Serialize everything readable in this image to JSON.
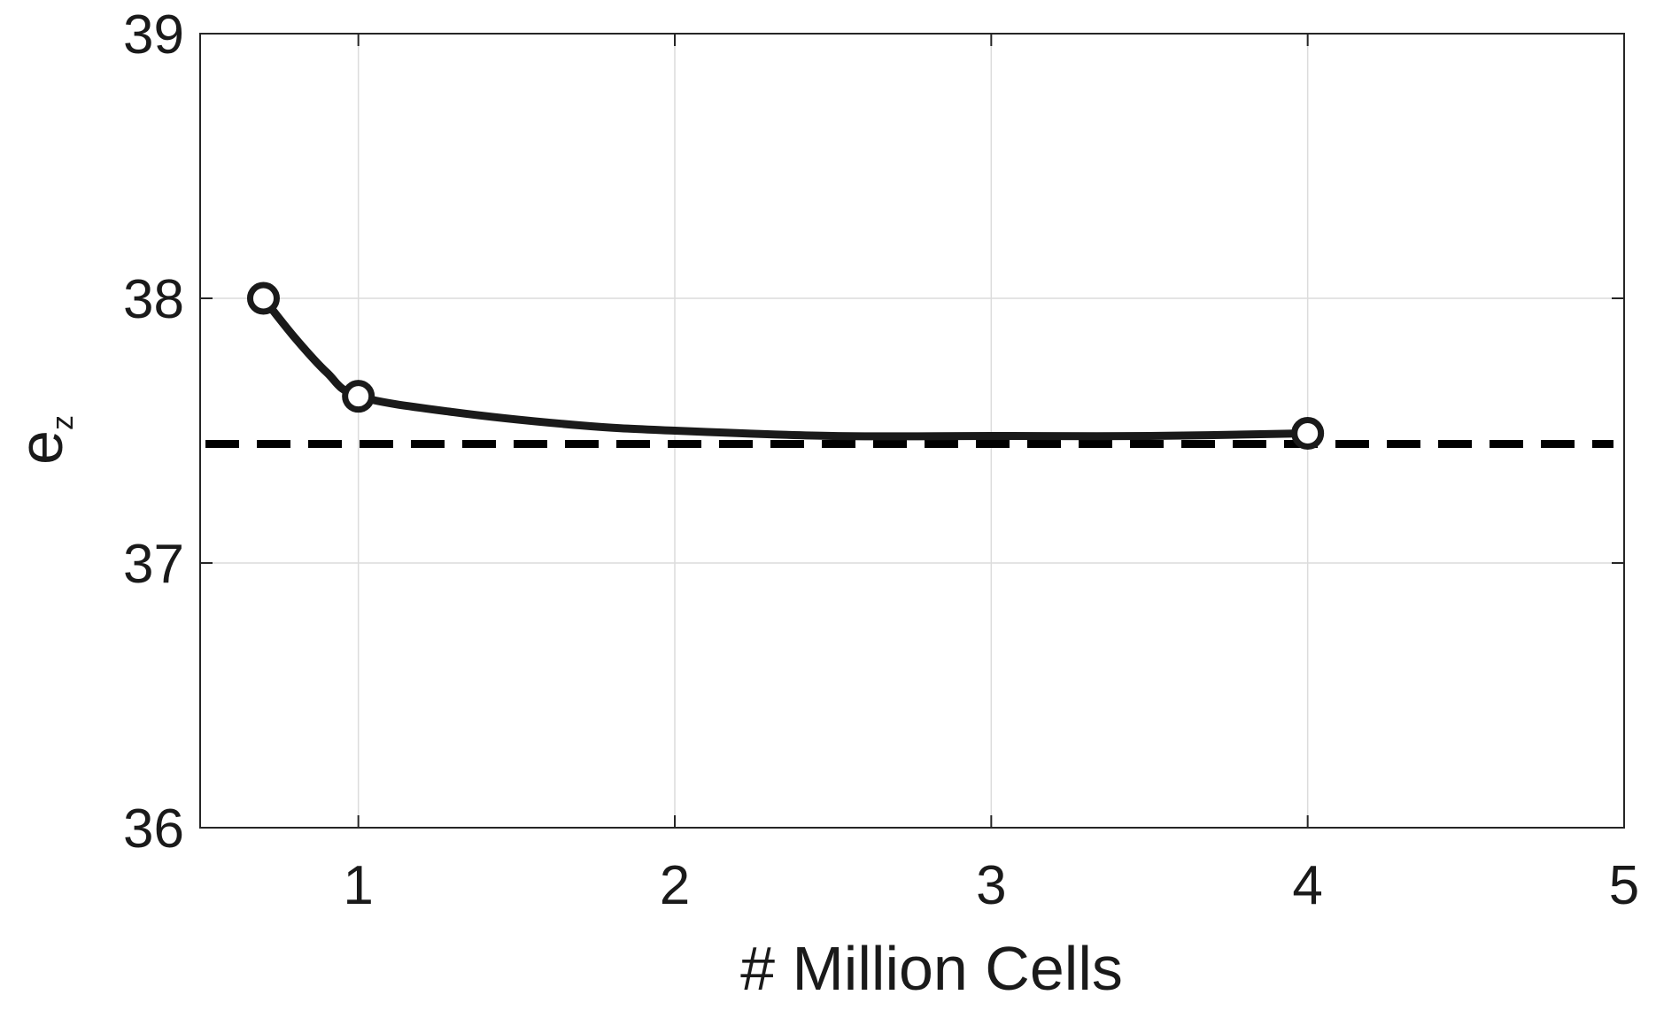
{
  "chart_data": {
    "type": "line",
    "xlabel": "# Million Cells",
    "ylabel": "e",
    "ylabel_subscript": "z",
    "xlim": [
      0.5,
      5
    ],
    "ylim": [
      36,
      39
    ],
    "x_ticks": [
      1,
      2,
      3,
      4,
      5
    ],
    "y_ticks": [
      36,
      37,
      38,
      39
    ],
    "x_tick_labels": [
      "1",
      "2",
      "3",
      "4",
      "5"
    ],
    "y_tick_labels": [
      "36",
      "37",
      "38",
      "39"
    ],
    "grid": true,
    "legend": "none",
    "series": [
      {
        "style": "solid",
        "marker": "circle",
        "color": "#1a1a1a",
        "points": [
          {
            "x": 0.7,
            "y": 38.0
          },
          {
            "x": 1.0,
            "y": 37.63
          },
          {
            "x": 4.0,
            "y": 37.49
          }
        ],
        "curve": [
          {
            "x": 0.7,
            "y": 38.0
          },
          {
            "x": 0.8,
            "y": 37.85
          },
          {
            "x": 0.9,
            "y": 37.72
          },
          {
            "x": 1.0,
            "y": 37.63
          },
          {
            "x": 1.3,
            "y": 37.57
          },
          {
            "x": 1.7,
            "y": 37.52
          },
          {
            "x": 2.0,
            "y": 37.5
          },
          {
            "x": 2.5,
            "y": 37.48
          },
          {
            "x": 3.0,
            "y": 37.48
          },
          {
            "x": 3.5,
            "y": 37.48
          },
          {
            "x": 4.0,
            "y": 37.49
          }
        ]
      },
      {
        "style": "dashed",
        "color": "#000000",
        "x": [
          0.5,
          5
        ],
        "y": [
          37.45,
          37.45
        ]
      }
    ]
  }
}
